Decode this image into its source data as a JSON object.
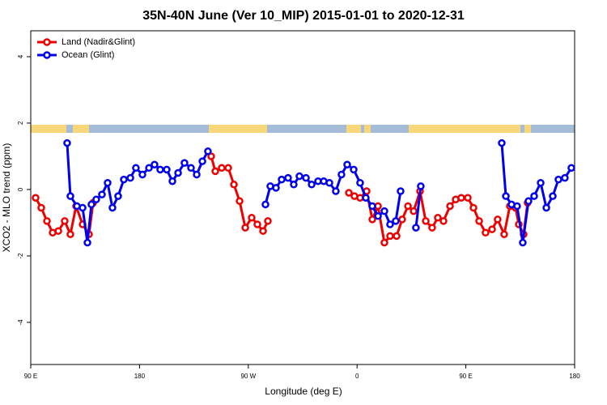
{
  "chart_data": {
    "type": "line",
    "title": "35N-40N June (Ver 10_MIP)   2015-01-01 to 2020-12-31",
    "x_label": "Longitude (deg E)",
    "y_label": "XCO2 - MLO trend (ppm)",
    "xlim": [
      90,
      540
    ],
    "xticks": [
      {
        "value": 90,
        "label": "90 E"
      },
      180,
      {
        "value": 270,
        "label": "90 W"
      },
      {
        "value": 360,
        "label": "0"
      },
      {
        "value": 450,
        "label": "90 E"
      },
      {
        "value": 540,
        "label": "180"
      }
    ],
    "ylim": [
      -5.27,
      4.78
    ],
    "yticks": [
      -4,
      -2,
      0,
      2,
      4
    ],
    "legend": "top-left",
    "series": [
      {
        "name": "Land (Nadir&Glint)",
        "color": "#ee0000",
        "x": [
          94.0,
          98.7,
          103.4,
          108.1,
          112.8,
          118.1,
          122.8,
          127.5,
          132.9,
          138.2,
          141.6,
          null,
          239.3,
          242.7,
          248.0,
          253.4,
          258.1,
          262.8,
          267.5,
          272.8,
          277.5,
          282.2,
          286.2,
          null,
          353.2,
          357.8,
          362.5,
          367.9,
          372.6,
          377.3,
          382.6,
          387.3,
          392.7,
          397.3,
          402.1,
          406.8,
          412.1,
          416.8,
          422.1,
          426.8,
          431.5,
          436.9,
          441.6,
          446.2,
          451.6,
          456.3,
          461.0,
          466.3,
          471.7,
          476.3,
          481.7,
          486.4,
          491.1,
          493.8,
          497.8,
          501.1
        ],
        "values": [
          -0.25,
          -0.55,
          -0.95,
          -1.3,
          -1.25,
          -0.95,
          -1.35,
          -0.5,
          -1.05,
          -1.35,
          -0.4,
          null,
          1.0,
          0.55,
          0.65,
          0.65,
          0.15,
          -0.35,
          -1.15,
          -0.85,
          -1.05,
          -1.25,
          -0.95,
          null,
          -0.1,
          -0.2,
          -0.25,
          -0.05,
          -0.9,
          -0.5,
          -1.6,
          -1.4,
          -1.4,
          -0.9,
          -0.5,
          -0.65,
          -0.05,
          -0.95,
          -1.15,
          -0.85,
          -0.95,
          -0.5,
          -0.3,
          -0.25,
          -0.25,
          -0.55,
          -0.95,
          -1.3,
          -1.2,
          -0.9,
          -1.35,
          -0.5,
          -0.55,
          -1.05,
          -1.35,
          -0.4
        ]
      },
      {
        "name": "Ocean (Glint)",
        "color": "#0000ee",
        "x": [
          120.1,
          122.8,
          128.2,
          132.9,
          136.9,
          140.2,
          144.2,
          148.9,
          153.6,
          157.6,
          162.3,
          167.0,
          172.4,
          177.0,
          182.4,
          187.8,
          192.4,
          197.1,
          202.5,
          207.2,
          211.9,
          217.2,
          222.6,
          227.3,
          232.0,
          236.6,
          null,
          284.2,
          288.2,
          292.9,
          297.6,
          302.9,
          307.6,
          312.3,
          317.7,
          322.4,
          327.7,
          332.4,
          337.1,
          342.4,
          347.1,
          351.8,
          357.2,
          362.5,
          367.2,
          372.6,
          377.3,
          382.6,
          387.3,
          392.0,
          396.0,
          null,
          408.7,
          412.7,
          null,
          479.7,
          483.1,
          487.8,
          492.4,
          497.1,
          501.8,
          506.5,
          511.9,
          516.6,
          521.9,
          526.6,
          531.9,
          537.3
        ],
        "values": [
          1.4,
          -0.2,
          -0.5,
          -0.55,
          -1.6,
          -0.45,
          -0.3,
          -0.15,
          0.2,
          -0.55,
          -0.2,
          0.3,
          0.35,
          0.65,
          0.45,
          0.65,
          0.75,
          0.6,
          0.6,
          0.25,
          0.5,
          0.8,
          0.65,
          0.45,
          0.85,
          1.15,
          null,
          -0.45,
          0.1,
          0.05,
          0.3,
          0.35,
          0.15,
          0.4,
          0.35,
          0.15,
          0.25,
          0.25,
          0.2,
          -0.05,
          0.45,
          0.75,
          0.6,
          0.2,
          -0.25,
          -0.5,
          -0.8,
          -0.65,
          -1.05,
          -0.95,
          -0.05,
          null,
          -1.15,
          0.1,
          null,
          1.4,
          -0.2,
          -0.45,
          -0.5,
          -1.6,
          -0.35,
          -0.2,
          0.2,
          -0.55,
          -0.2,
          0.3,
          0.35,
          0.65
        ]
      }
    ]
  }
}
